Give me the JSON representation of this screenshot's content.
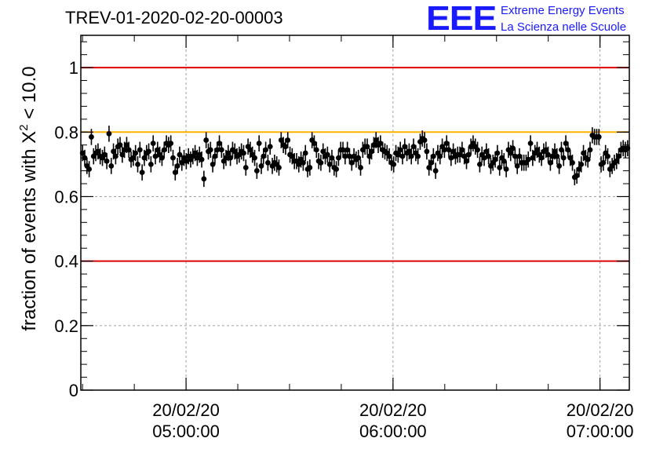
{
  "title": "TREV-01-2020-02-20-00003",
  "logo": {
    "mark": "EEE",
    "line1": "Extreme Energy Events",
    "line2": "La Scienza nelle Scuole"
  },
  "colors": {
    "reference_lines": "#dd0000",
    "upper_line": "#ffb000",
    "markers": "#000000",
    "grid": "#a0a0a0",
    "logo": "#1a1aff"
  },
  "chart_data": {
    "type": "scatter",
    "title": "TREV-01-2020-02-20-00003",
    "xlabel": "",
    "ylabel": "fraction of events with",
    "ylabel_symbol": "X",
    "ylabel_sup": "2",
    "ylabel_suffix": "< 10.0",
    "ylim": [
      0,
      1.1
    ],
    "xlim": [
      "2020-02-20 04:29:30",
      "2020-02-20 07:08:30"
    ],
    "grid": true,
    "y_ticks": [
      {
        "value": 0,
        "label": "0"
      },
      {
        "value": 0.2,
        "label": "0.2"
      },
      {
        "value": 0.4,
        "label": "0.4"
      },
      {
        "value": 0.6,
        "label": "0.6"
      },
      {
        "value": 0.8,
        "label": "0.8"
      },
      {
        "value": 1,
        "label": "1"
      }
    ],
    "x_ticks": [
      {
        "time": "2020-02-20 05:00:00",
        "date_label": "20/02/20",
        "time_label": "05:00:00"
      },
      {
        "time": "2020-02-20 06:00:00",
        "date_label": "20/02/20",
        "time_label": "06:00:00"
      },
      {
        "time": "2020-02-20 07:00:00",
        "date_label": "20/02/20",
        "time_label": "07:00:00"
      }
    ],
    "reference_lines": [
      {
        "y": 1.0,
        "color": "#dd0000"
      },
      {
        "y": 0.8,
        "color": "#ffb000"
      },
      {
        "y": 0.4,
        "color": "#dd0000"
      }
    ],
    "error_bar": 0.025,
    "series": [
      {
        "start": "2020-02-20 04:30:00",
        "end": "2020-02-20 07:08:00",
        "values": [
          0.735,
          0.72,
          0.695,
          0.685,
          0.785,
          0.725,
          0.735,
          0.74,
          0.725,
          0.72,
          0.73,
          0.71,
          0.795,
          0.695,
          0.74,
          0.725,
          0.755,
          0.76,
          0.73,
          0.745,
          0.76,
          0.745,
          0.715,
          0.72,
          0.735,
          0.7,
          0.745,
          0.675,
          0.72,
          0.735,
          0.74,
          0.7,
          0.765,
          0.725,
          0.745,
          0.73,
          0.72,
          0.745,
          0.765,
          0.76,
          0.765,
          0.72,
          0.675,
          0.695,
          0.73,
          0.705,
          0.72,
          0.71,
          0.725,
          0.715,
          0.725,
          0.735,
          0.72,
          0.73,
          0.715,
          0.655,
          0.775,
          0.74,
          0.745,
          0.7,
          0.725,
          0.745,
          0.765,
          0.745,
          0.71,
          0.72,
          0.735,
          0.72,
          0.745,
          0.74,
          0.725,
          0.73,
          0.74,
          0.735,
          0.69,
          0.755,
          0.745,
          0.73,
          0.72,
          0.68,
          0.765,
          0.695,
          0.725,
          0.745,
          0.705,
          0.755,
          0.695,
          0.705,
          0.7,
          0.69,
          0.775,
          0.76,
          0.755,
          0.775,
          0.73,
          0.725,
          0.71,
          0.71,
          0.7,
          0.715,
          0.705,
          0.735,
          0.685,
          0.69,
          0.775,
          0.765,
          0.745,
          0.71,
          0.705,
          0.74,
          0.725,
          0.73,
          0.7,
          0.72,
          0.69,
          0.685,
          0.72,
          0.745,
          0.745,
          0.725,
          0.745,
          0.725,
          0.705,
          0.725,
          0.715,
          0.72,
          0.69,
          0.745,
          0.755,
          0.755,
          0.725,
          0.74,
          0.76,
          0.775,
          0.76,
          0.765,
          0.745,
          0.74,
          0.735,
          0.725,
          0.705,
          0.7,
          0.735,
          0.73,
          0.745,
          0.725,
          0.755,
          0.735,
          0.74,
          0.725,
          0.755,
          0.735,
          0.725,
          0.77,
          0.78,
          0.775,
          0.74,
          0.69,
          0.705,
          0.725,
          0.68,
          0.735,
          0.725,
          0.755,
          0.745,
          0.765,
          0.745,
          0.72,
          0.74,
          0.725,
          0.73,
          0.73,
          0.745,
          0.725,
          0.71,
          0.73,
          0.755,
          0.765,
          0.755,
          0.745,
          0.7,
          0.73,
          0.72,
          0.74,
          0.725,
          0.695,
          0.705,
          0.715,
          0.735,
          0.69,
          0.72,
          0.71,
          0.685,
          0.745,
          0.735,
          0.75,
          0.725,
          0.695,
          0.725,
          0.705,
          0.705,
          0.705,
          0.715,
          0.765,
          0.72,
          0.735,
          0.745,
          0.73,
          0.72,
          0.74,
          0.745,
          0.73,
          0.705,
          0.725,
          0.74,
          0.725,
          0.695,
          0.745,
          0.72,
          0.765,
          0.745,
          0.72,
          0.705,
          0.66,
          0.665,
          0.685,
          0.7,
          0.735,
          0.72,
          0.715,
          0.745,
          0.79,
          0.785,
          0.785,
          0.785,
          0.7,
          0.705,
          0.735,
          0.725,
          0.685,
          0.695,
          0.705,
          0.71,
          0.725,
          0.745,
          0.75,
          0.745,
          0.75
        ]
      }
    ]
  }
}
